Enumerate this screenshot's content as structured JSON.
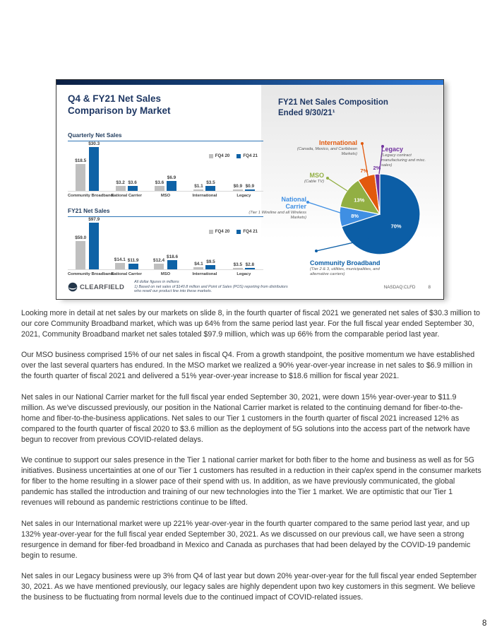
{
  "page": {
    "number": "8"
  },
  "slide": {
    "left_title_line1": "Q4 & FY21 Net Sales",
    "left_title_line2": "Comparison by Market",
    "right_title_line1": "FY21 Net Sales Composition",
    "right_title_line2": "Ended 9/30/21¹",
    "footer": {
      "logo_text": "CLEARFIELD",
      "footnote_lines": [
        "All dollar figures in millions",
        "1) Based on net sales of $140.8 million and Point of Sales (POS) reporting from distributors",
        "who resell our product line into these markets."
      ],
      "ticker": "NASDAQ:CLFD",
      "slide_number": "8"
    }
  },
  "chart_data": [
    {
      "type": "bar",
      "title": "Quarterly Net Sales",
      "value_prefix": "$",
      "unit": "millions",
      "categories": [
        "Community Broadband",
        "National Carrier",
        "MSO",
        "International",
        "Legacy"
      ],
      "series": [
        {
          "name": "FQ4 20",
          "color": "#BFBFBF",
          "values": [
            18.5,
            3.2,
            3.6,
            1.1,
            0.9
          ]
        },
        {
          "name": "FQ4 21",
          "color": "#0E62A6",
          "values": [
            30.3,
            3.6,
            6.9,
            3.5,
            0.9
          ]
        }
      ],
      "legend_position": "top-right",
      "grid": false
    },
    {
      "type": "bar",
      "title": "FY21 Net Sales",
      "value_prefix": "$",
      "unit": "millions",
      "categories": [
        "Community Broadband",
        "National Carrier",
        "MSO",
        "International",
        "Legacy"
      ],
      "series": [
        {
          "name": "FQ4 20",
          "color": "#BFBFBF",
          "values": [
            59.0,
            14.1,
            12.4,
            4.1,
            3.5
          ]
        },
        {
          "name": "FQ4 21",
          "color": "#0E62A6",
          "values": [
            97.9,
            11.9,
            18.6,
            9.5,
            2.8
          ]
        }
      ],
      "legend_position": "top-right",
      "grid": false
    },
    {
      "type": "pie",
      "title": "FY21 Net Sales Composition Ended 9/30/21¹",
      "slices": [
        {
          "label": "Community Broadband",
          "sublabel": "(Tier 2 & 3, utilities, municipalities, and alternative carriers)",
          "pct": 70,
          "color": "#0C5EA6"
        },
        {
          "label": "National Carrier",
          "sublabel": "(Tier 1 Wireline and all Wireless Markets)",
          "pct": 8,
          "color": "#3F8FE3"
        },
        {
          "label": "MSO",
          "sublabel": "(Cable TV)",
          "pct": 13,
          "color": "#92AF43"
        },
        {
          "label": "International",
          "sublabel": "(Canada, Mexico, and Caribbean Markets)",
          "pct": 7,
          "color": "#E2590D"
        },
        {
          "label": "Legacy",
          "sublabel": "(Legacy contract manufacturing and misc. sales)",
          "pct": 2,
          "color": "#71329E"
        }
      ]
    }
  ],
  "body": {
    "paragraphs": [
      "Looking more in detail at net sales by our markets on slide 8, in the fourth quarter of fiscal 2021 we generated net sales of $30.3 million to our core Community Broadband market, which was up 64% from the same period last year. For the full fiscal year ended September 30, 2021, Community Broadband market net sales totaled $97.9 million, which was up 66% from the comparable period last year.",
      "Our MSO business comprised 15% of our net sales in fiscal Q4. From a growth standpoint, the positive momentum we have established over the last several quarters has endured.  In the MSO market we realized a 90% year-over-year increase in net sales to $6.9 million in the fourth quarter of fiscal 2021 and delivered a 51% year-over-year increase to $18.6 million for fiscal year 2021.",
      "Net sales in our National Carrier market for the full fiscal year ended September 30, 2021, were down 15% year-over-year to $11.9 million. As we've discussed previously, our position in the National Carrier market is related to the continuing demand for fiber-to-the-home and fiber-to-the-business applications.  Net sales to our Tier 1 customers in the fourth quarter of fiscal 2021 increased 12% as compared to the fourth quarter of fiscal 2020 to $3.6 million as the deployment of 5G solutions into the access part of the network have begun to recover from previous COVID-related delays.",
      "We continue to support our sales presence in the Tier 1 national carrier market for both fiber to the home and business as well as for 5G initiatives. Business uncertainties at one of our Tier 1 customers has resulted in a reduction in their cap/ex spend in the consumer markets for fiber to the home resulting in a slower pace of their spend with us.  In addition, as we have previously communicated, the global pandemic has stalled the introduction and training of our new technologies into the Tier 1 market.  We are optimistic that our Tier 1 revenues will rebound as pandemic restrictions continue to be lifted.",
      "Net sales in our International market were up 221% year-over-year in the fourth quarter compared to the same period last year, and up 132% year-over-year for the full fiscal year ended September 30, 2021.  As we discussed on our previous call, we have seen a strong resurgence in demand for fiber-fed broadband in Mexico and Canada as purchases that had been delayed by the COVID-19 pandemic begin to resume.",
      "Net sales in our Legacy business were up 3% from Q4 of last year but down 20% year-over-year for the full fiscal year ended September 30, 2021.  As we have mentioned previously, our legacy sales are highly dependent upon two key customers in this segment.  We believe the business to be fluctuating from normal levels due to the continued impact of COVID-related issues."
    ]
  }
}
